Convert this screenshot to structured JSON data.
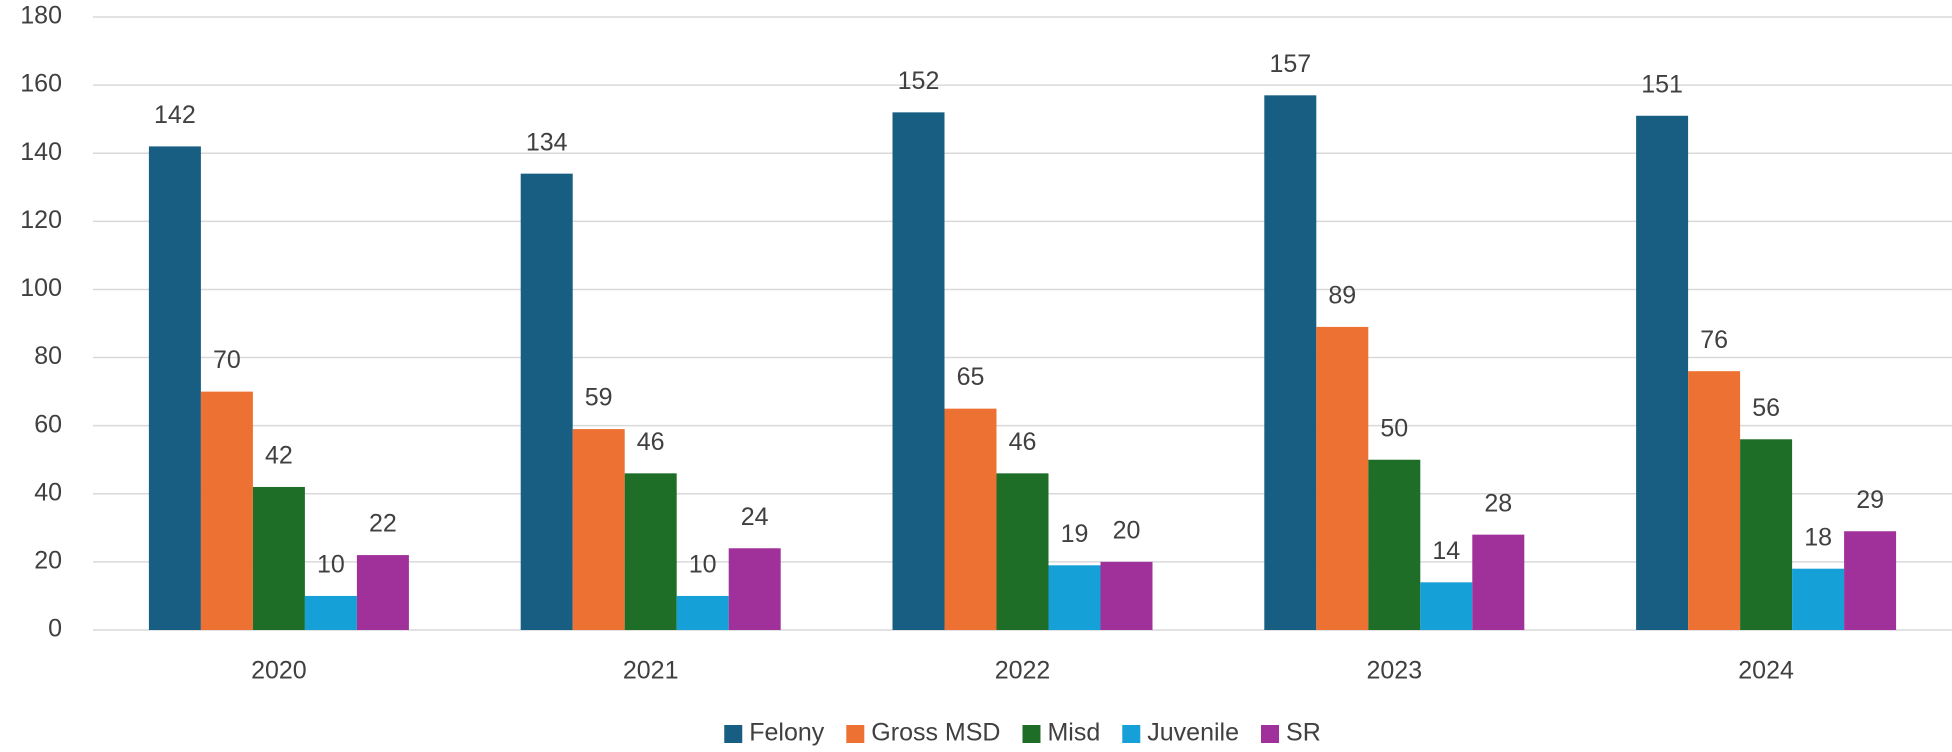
{
  "chart_data": {
    "type": "bar",
    "categories": [
      "2020",
      "2021",
      "2022",
      "2023",
      "2024"
    ],
    "series": [
      {
        "name": "Felony",
        "color": "#175e82",
        "values": [
          142,
          134,
          152,
          157,
          151
        ]
      },
      {
        "name": "Gross MSD",
        "color": "#ed7133",
        "values": [
          70,
          59,
          65,
          89,
          76
        ]
      },
      {
        "name": "Misd",
        "color": "#1e6e28",
        "values": [
          42,
          46,
          46,
          50,
          56
        ]
      },
      {
        "name": "Juvenile",
        "color": "#16a0d8",
        "values": [
          10,
          10,
          19,
          14,
          18
        ]
      },
      {
        "name": "SR",
        "color": "#a0309a",
        "values": [
          22,
          24,
          20,
          28,
          29
        ]
      }
    ],
    "ylim": [
      0,
      180
    ],
    "yticks": [
      0,
      20,
      40,
      60,
      80,
      100,
      120,
      140,
      160,
      180
    ],
    "grid": true,
    "legend": "bottom"
  }
}
